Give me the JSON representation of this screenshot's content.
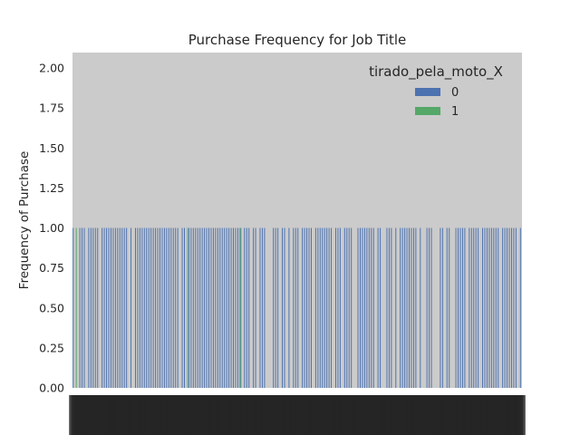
{
  "chart_data": {
    "type": "bar",
    "title": "Purchase Frequency for Job Title",
    "xlabel": "",
    "ylabel": "Frequency of Purchase",
    "ylim": [
      0,
      2.0
    ],
    "yticks": [
      "0.00",
      "0.25",
      "0.50",
      "0.75",
      "1.00",
      "1.25",
      "1.50",
      "1.75",
      "2.00"
    ],
    "grid": false,
    "legend": {
      "title": "tirado_pela_moto_X",
      "placement": "top-right"
    },
    "series": [
      {
        "name": "0",
        "color": "#4c72b0",
        "values": [
          1,
          0,
          0,
          1,
          1,
          1,
          0,
          1,
          1,
          1,
          1,
          1,
          0,
          1,
          1,
          1,
          1,
          1,
          1,
          1,
          1,
          1,
          1,
          1,
          1,
          0,
          1,
          0,
          1,
          1,
          1,
          1,
          1,
          1,
          1,
          1,
          1,
          1,
          1,
          1,
          1,
          1,
          1,
          1,
          1,
          1,
          1,
          1,
          0,
          1,
          1,
          0,
          1,
          1,
          1,
          1,
          1,
          1,
          1,
          1,
          1,
          1,
          1,
          1,
          1,
          1,
          1,
          1,
          1,
          1,
          1,
          1,
          1,
          1,
          1,
          1,
          0,
          1,
          1,
          1,
          0,
          1,
          1,
          0,
          1,
          1,
          1,
          0,
          0,
          0,
          1,
          1,
          1,
          0,
          1,
          1,
          0,
          1,
          0,
          1,
          1,
          1,
          0,
          1,
          1,
          1,
          1,
          1,
          0,
          1,
          1,
          1,
          1,
          1,
          1,
          1,
          1,
          0,
          1,
          1,
          1,
          0,
          1,
          1,
          1,
          1,
          0,
          0,
          1,
          1,
          1,
          1,
          1,
          1,
          1,
          1,
          0,
          1,
          1,
          0,
          0,
          1,
          1,
          1,
          0,
          1,
          0,
          1,
          1,
          1,
          1,
          1,
          1,
          1,
          1,
          0,
          1,
          0,
          0,
          1,
          1,
          1,
          0,
          0,
          0,
          1,
          1,
          0,
          1,
          1,
          0,
          0,
          1,
          1,
          1,
          1,
          1,
          0,
          1,
          1,
          1,
          1,
          1,
          0,
          1,
          1,
          1,
          1,
          1,
          1,
          1,
          1,
          0,
          1,
          1,
          1,
          1,
          1,
          1,
          1,
          0,
          1
        ]
      },
      {
        "name": "1",
        "color": "#55a868",
        "values": [
          0,
          1,
          0,
          0,
          0,
          0,
          0,
          0,
          0,
          0,
          0,
          0,
          0,
          0,
          0,
          0,
          0,
          0,
          0,
          0,
          0,
          0,
          0,
          0,
          0,
          0,
          0,
          0,
          0,
          0,
          0,
          0,
          0,
          0,
          0,
          0,
          0,
          0,
          0,
          0,
          0,
          0,
          0,
          0,
          0,
          0,
          0,
          0,
          0,
          0,
          0,
          1,
          0,
          0,
          0,
          0,
          0,
          0,
          0,
          0,
          0,
          0,
          0,
          0,
          0,
          0,
          0,
          0,
          0,
          0,
          0,
          0,
          0,
          0,
          0,
          1,
          0,
          0,
          0,
          0,
          0,
          0,
          0,
          0,
          0,
          0,
          0,
          0,
          0,
          0,
          0,
          0,
          0,
          0,
          0,
          0,
          0,
          0,
          0,
          0,
          0,
          0,
          0,
          0,
          0,
          0,
          0,
          0,
          0,
          0,
          0,
          0,
          0,
          0,
          0,
          0,
          0,
          0,
          0,
          0,
          0,
          0,
          0,
          0,
          0,
          0,
          0,
          0,
          0,
          0,
          0,
          0,
          0,
          0,
          0,
          0,
          0,
          0,
          0,
          0,
          0,
          0,
          0,
          0,
          0,
          0,
          0,
          0,
          0,
          0,
          0,
          0,
          0,
          0,
          0,
          0,
          0,
          0,
          0,
          0,
          0,
          0,
          0,
          0,
          0,
          0,
          0,
          0,
          0,
          0,
          0,
          0,
          0,
          0,
          0,
          0,
          0,
          0,
          0,
          0,
          0,
          0,
          0,
          0,
          0,
          0,
          0,
          0,
          0,
          0,
          0,
          0,
          0,
          0,
          0,
          0,
          0,
          0,
          0,
          0
        ]
      }
    ]
  }
}
